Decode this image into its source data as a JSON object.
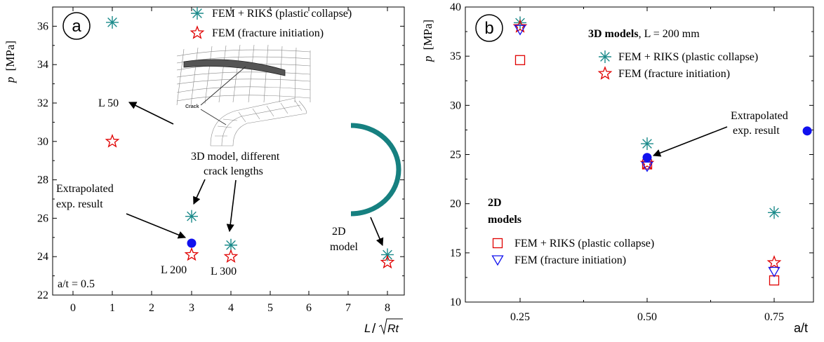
{
  "chart_data": [
    {
      "panel_label": "a",
      "type": "scatter",
      "xlabel": "L/√Rt",
      "xlabel_italic_main": "L",
      "xlabel_sqrt_arg": "Rt",
      "ylabel": "p [MPa]",
      "ylabel_var": "p",
      "ylabel_unit": "[MPa]",
      "x_categories": [
        "0",
        "1",
        "2",
        "3",
        "4",
        "5",
        "6",
        "7",
        "8"
      ],
      "ylim": [
        22,
        37
      ],
      "yticks": [
        "22",
        "24",
        "26",
        "28",
        "30",
        "32",
        "34",
        "36"
      ],
      "legend": {
        "position": "top-right",
        "items": [
          {
            "label": "FEM + RIKS (plastic collapse)",
            "marker": "asterisk",
            "color": "#1a8a8a"
          },
          {
            "label": "FEM (fracture initiation)",
            "marker": "star",
            "color": "#e00000"
          }
        ]
      },
      "series": [
        {
          "name": "FEM + RIKS (plastic collapse)",
          "marker": "asterisk",
          "color": "#1a8a8a",
          "points": [
            {
              "x": 1,
              "y": 36.2
            },
            {
              "x": 3,
              "y": 26.1
            },
            {
              "x": 4,
              "y": 24.6
            },
            {
              "x": 8,
              "y": 24.1
            }
          ]
        },
        {
          "name": "FEM (fracture initiation)",
          "marker": "star",
          "color": "#e00000",
          "points": [
            {
              "x": 1,
              "y": 30.0
            },
            {
              "x": 3,
              "y": 24.1
            },
            {
              "x": 4,
              "y": 24.0
            },
            {
              "x": 8,
              "y": 23.7
            }
          ]
        },
        {
          "name": "Extrapolated exp. result",
          "marker": "dot",
          "color": "#1111ee",
          "points": [
            {
              "x": 3,
              "y": 24.7
            }
          ]
        }
      ],
      "annotations": {
        "l50": "L 50",
        "model3d_line1": "3D model, different",
        "model3d_line2": "crack lengths",
        "extrap_line1": "Extrapolated",
        "extrap_line2": "exp. result",
        "l200": "L 200",
        "l300": "L 300",
        "model2d_line1": "2D",
        "model2d_line2": "model",
        "at": "a/t = 0.5",
        "crack": "Crack"
      },
      "colors": {
        "teal": "#1a8a8a",
        "red": "#e00000",
        "blue": "#1111ee"
      }
    },
    {
      "panel_label": "b",
      "type": "scatter",
      "xlabel": "a/t",
      "ylabel": "p [MPa]",
      "ylabel_var": "p",
      "ylabel_unit": "[MPa]",
      "xticks": [
        "0.25",
        "0.50",
        "0.75"
      ],
      "xlim": [
        0.15,
        0.85
      ],
      "ylim": [
        10,
        40
      ],
      "yticks": [
        "10",
        "15",
        "20",
        "25",
        "30",
        "35",
        "40"
      ],
      "legend_3d": {
        "title_bold": "3D models",
        "title_rest": ",   L = 200 mm",
        "items": [
          {
            "label": "FEM + RIKS (plastic collapse)",
            "marker": "asterisk",
            "color": "#1a8a8a"
          },
          {
            "label": "FEM (fracture initiation)",
            "marker": "star",
            "color": "#e00000"
          }
        ]
      },
      "legend_2d": {
        "title_line1": "2D",
        "title_line2": "models",
        "items": [
          {
            "label": "FEM + RIKS (plastic collapse)",
            "marker": "square",
            "color": "#e00000"
          },
          {
            "label": "FEM (fracture initiation)",
            "marker": "triangle-down",
            "color": "#1111ee"
          }
        ]
      },
      "series": [
        {
          "name": "3D FEM + RIKS (plastic collapse)",
          "marker": "asterisk",
          "color": "#1a8a8a",
          "points": [
            {
              "x": 0.25,
              "y": 38.4
            },
            {
              "x": 0.5,
              "y": 26.1
            },
            {
              "x": 0.75,
              "y": 19.1
            }
          ]
        },
        {
          "name": "3D FEM (fracture initiation)",
          "marker": "star",
          "color": "#e00000",
          "points": [
            {
              "x": 0.25,
              "y": 38.0
            },
            {
              "x": 0.5,
              "y": 24.1
            },
            {
              "x": 0.75,
              "y": 14.0
            }
          ]
        },
        {
          "name": "2D FEM + RIKS (plastic collapse)",
          "marker": "square",
          "color": "#e00000",
          "points": [
            {
              "x": 0.25,
              "y": 34.6
            },
            {
              "x": 0.5,
              "y": 24.0
            },
            {
              "x": 0.75,
              "y": 12.2
            }
          ]
        },
        {
          "name": "2D FEM (fracture initiation)",
          "marker": "triangle-down",
          "color": "#1111ee",
          "points": [
            {
              "x": 0.25,
              "y": 37.7
            },
            {
              "x": 0.5,
              "y": 23.8
            },
            {
              "x": 0.75,
              "y": 13.1
            }
          ]
        },
        {
          "name": "Extrapolated exp. result",
          "marker": "dot",
          "color": "#1111ee",
          "points": [
            {
              "x": 0.5,
              "y": 24.7
            },
            {
              "x": 0.815,
              "y": 27.4
            }
          ]
        }
      ],
      "annotations": {
        "extrap_line1": "Extrapolated",
        "extrap_line2": "exp. result"
      },
      "colors": {
        "teal": "#1a8a8a",
        "red": "#e00000",
        "blue": "#1111ee"
      }
    }
  ]
}
